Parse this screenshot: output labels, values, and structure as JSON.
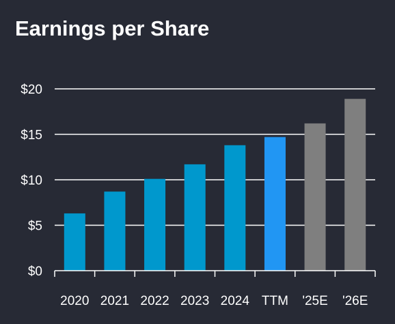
{
  "chart_data": {
    "type": "bar",
    "title": "Earnings per Share",
    "categories": [
      "2020",
      "2021",
      "2022",
      "2023",
      "2024",
      "TTM",
      "'25E",
      "'26E"
    ],
    "values": [
      6.3,
      8.7,
      10.1,
      11.7,
      13.8,
      14.7,
      16.2,
      18.9
    ],
    "bar_colors": [
      "#0098cd",
      "#0098cd",
      "#0098cd",
      "#0098cd",
      "#0098cd",
      "#2196f3",
      "#7f7f7f",
      "#7f7f7f"
    ],
    "y_ticks": [
      0,
      5,
      10,
      15,
      20
    ],
    "y_tick_labels": [
      "$0",
      "$5",
      "$10",
      "$15",
      "$20"
    ],
    "ylim": [
      0,
      20
    ],
    "grid": true,
    "xlabel": "",
    "ylabel": "",
    "colors": {
      "background": "#272a35",
      "grid": "#ffffff",
      "text": "#ffffff"
    }
  }
}
